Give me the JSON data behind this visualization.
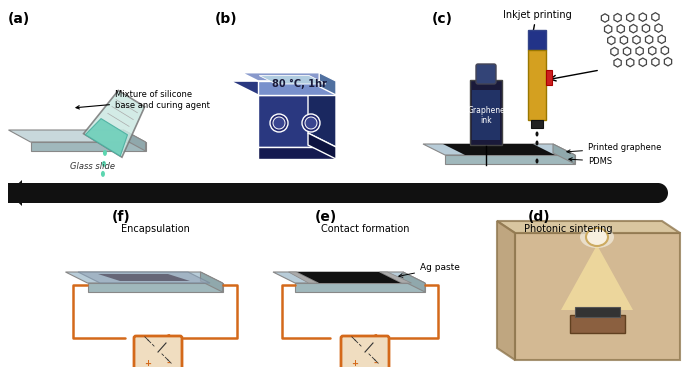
{
  "bg_color": "#ffffff",
  "label_a": "(a)",
  "label_b": "(b)",
  "label_c": "(c)",
  "label_d": "(d)",
  "label_e": "(e)",
  "label_f": "(f)",
  "text_mixture": "Mixture of silicone\nbase and curing agent",
  "text_glass": "Glass slide",
  "text_hot": "80 °C, 1hr",
  "text_inkjet": "Inkjet printing",
  "text_graphene_ink": "Graphene\nink",
  "text_printed": "Printed graphene",
  "text_pdms": "PDMS",
  "text_photonic": "Photonic sintering",
  "text_contact": "Contact formation",
  "text_encapsulation": "Encapsulation",
  "text_ag": "Ag paste",
  "orange_color": "#d4691a",
  "beaker_face": "#cce8e2",
  "beaker_liquid": "#6ecfba",
  "drop_color": "#5cd6b0",
  "glass_top": "#c8d8dc",
  "glass_side": "#a0b8bc",
  "glass_edge": "#888888",
  "hp_top": "#7890cc",
  "hp_plat": "#8899cc",
  "hp_screen": "#b0cce0",
  "hp_front": "#2a3880",
  "hp_right": "#1a2860",
  "hp_dark": "#151a50",
  "hp_knob": "#232870",
  "bottle_body": "#1a1a3a",
  "bottle_label": "#223366",
  "pen_body": "#d4a020",
  "pen_cap": "#223388",
  "pen_red": "#cc2020",
  "hex_edge": "#444444",
  "graphene_strip": "#111111",
  "ag_paste": "#aaaaaa",
  "box_front": "#c8a878",
  "box_side": "#b09060",
  "box_top_face": "#d0b888",
  "light_cone": "#f5e0a0",
  "bulb_color": "#f8f0e0",
  "stand_color": "#8b6040",
  "sample_color": "#333333",
  "meter_face": "#f0ddc0",
  "meter_border": "#d4691a",
  "enc_top": "#8899aa",
  "enc_graphene": "#555555",
  "arrow_bar": "#111111"
}
